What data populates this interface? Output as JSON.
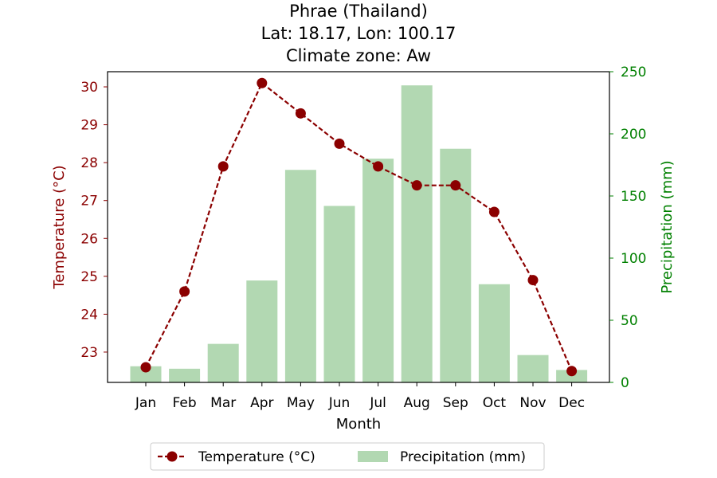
{
  "chart_data": {
    "type": "bar+line",
    "title_lines": [
      "Phrae (Thailand)",
      "Lat: 18.17, Lon: 100.17",
      "Climate zone: Aw"
    ],
    "xlabel": "Month",
    "ylabel_left": "Temperature (°C)",
    "ylabel_right": "Precipitation (mm)",
    "categories": [
      "Jan",
      "Feb",
      "Mar",
      "Apr",
      "May",
      "Jun",
      "Jul",
      "Aug",
      "Sep",
      "Oct",
      "Nov",
      "Dec"
    ],
    "temperature": {
      "name": "Temperature (°C)",
      "values": [
        22.6,
        24.6,
        27.9,
        30.1,
        29.3,
        28.5,
        27.9,
        27.4,
        27.4,
        26.7,
        24.9,
        22.5
      ],
      "color": "#8b0000",
      "ylim": [
        22.2,
        30.4
      ],
      "ticks": [
        23,
        24,
        25,
        26,
        27,
        28,
        29,
        30
      ]
    },
    "precipitation": {
      "name": "Precipitation (mm)",
      "values": [
        13,
        11,
        31,
        82,
        171,
        142,
        180,
        239,
        188,
        79,
        22,
        10
      ],
      "color": "#b2d8b2",
      "ylim": [
        0,
        250
      ],
      "ticks": [
        0,
        50,
        100,
        150,
        200,
        250
      ]
    },
    "axis_colors": {
      "left": "#8b0000",
      "right": "#008000"
    },
    "legend_position": "bottom-center",
    "grid": false
  }
}
